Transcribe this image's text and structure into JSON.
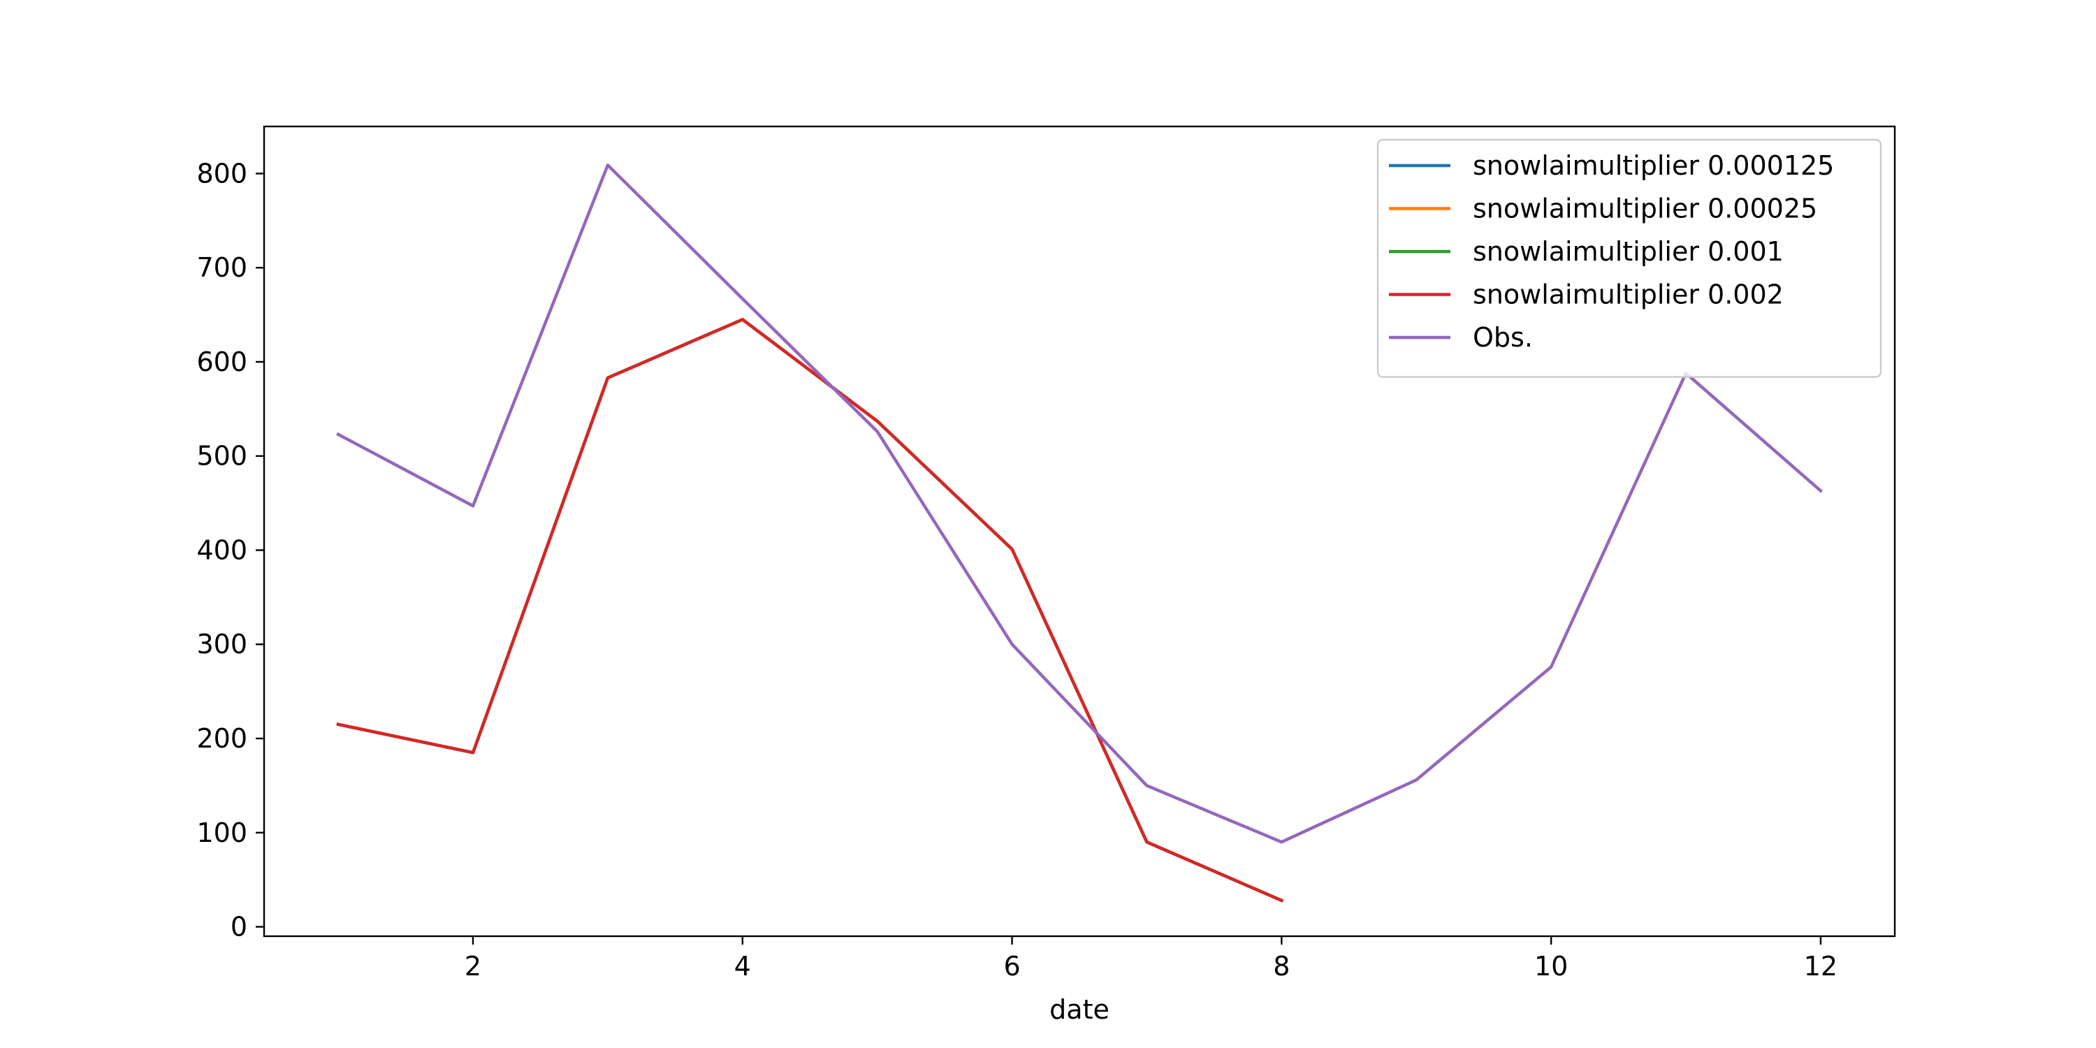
{
  "chart_data": {
    "type": "line",
    "title": "",
    "xlabel": "date",
    "ylabel": "",
    "xlim": [
      0.45,
      12.55
    ],
    "ylim": [
      -10,
      850
    ],
    "xticks": [
      2,
      4,
      6,
      8,
      10,
      12
    ],
    "yticks": [
      0,
      100,
      200,
      300,
      400,
      500,
      600,
      700,
      800
    ],
    "grid": false,
    "legend_position": "upper right",
    "series": [
      {
        "name": "snowlaimultiplier 0.000125",
        "color": "#1f77b4",
        "x": [
          1,
          2,
          3,
          4,
          5,
          6,
          7,
          8
        ],
        "y": [
          215,
          185,
          583,
          645,
          537,
          401,
          90,
          28
        ]
      },
      {
        "name": "snowlaimultiplier 0.00025",
        "color": "#ff7f0e",
        "x": [
          1,
          2,
          3,
          4,
          5,
          6,
          7,
          8
        ],
        "y": [
          215,
          185,
          583,
          645,
          537,
          401,
          90,
          28
        ]
      },
      {
        "name": "snowlaimultiplier 0.001",
        "color": "#2ca02c",
        "x": [
          1,
          2,
          3,
          4,
          5,
          6,
          7,
          8
        ],
        "y": [
          215,
          185,
          583,
          645,
          537,
          401,
          90,
          28
        ]
      },
      {
        "name": "snowlaimultiplier 0.002",
        "color": "#d62728",
        "x": [
          1,
          2,
          3,
          4,
          5,
          6,
          7,
          8
        ],
        "y": [
          215,
          185,
          583,
          645,
          537,
          401,
          90,
          28
        ]
      },
      {
        "name": "Obs.",
        "color": "#9467bd",
        "x": [
          1,
          2,
          3,
          4,
          5,
          6,
          7,
          8,
          9,
          10,
          11,
          12
        ],
        "y": [
          523,
          447,
          809,
          667,
          526,
          300,
          150,
          90,
          156,
          276,
          588,
          463
        ]
      }
    ]
  }
}
